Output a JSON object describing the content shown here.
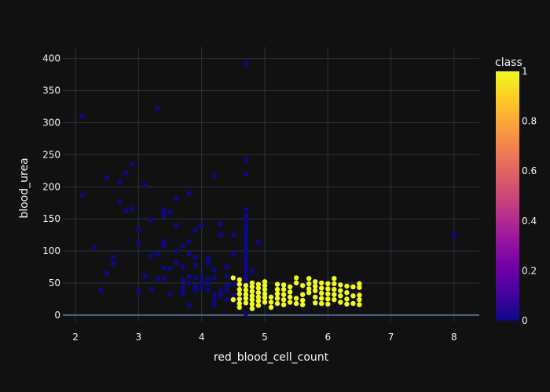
{
  "chart_data": {
    "type": "scatter",
    "title": "",
    "xlabel": "red_blood_cell_count",
    "ylabel": "blood_urea",
    "xlim": [
      1.8,
      8.4
    ],
    "ylim": [
      -10,
      418
    ],
    "xticks": [
      "2",
      "3",
      "4",
      "5",
      "6",
      "7",
      "8"
    ],
    "yticks": [
      "0",
      "50",
      "100",
      "150",
      "200",
      "250",
      "300",
      "350",
      "400"
    ],
    "grid": true,
    "colorbar": {
      "title": "class",
      "range": [
        0,
        1
      ],
      "ticks": [
        "0",
        "0.2",
        "0.4",
        "0.6",
        "0.8",
        "1"
      ],
      "colorscale": [
        "#0d0887",
        "#46039f",
        "#7201a8",
        "#9c179e",
        "#bd3786",
        "#d8576b",
        "#ed7953",
        "#fb9f3a",
        "#fdca26",
        "#f0f921"
      ]
    },
    "series": [
      {
        "class": 0,
        "color": "#0d0887",
        "points": [
          [
            2.1,
            310
          ],
          [
            2.1,
            187
          ],
          [
            2.3,
            106
          ],
          [
            2.4,
            39
          ],
          [
            2.5,
            215
          ],
          [
            2.5,
            66
          ],
          [
            2.6,
            90
          ],
          [
            2.6,
            80
          ],
          [
            2.7,
            208
          ],
          [
            2.7,
            176
          ],
          [
            2.8,
            222
          ],
          [
            2.8,
            162
          ],
          [
            2.9,
            235
          ],
          [
            2.9,
            166
          ],
          [
            3.0,
            133
          ],
          [
            3.0,
            112
          ],
          [
            3.0,
            37
          ],
          [
            3.1,
            203
          ],
          [
            3.1,
            60
          ],
          [
            3.2,
            148
          ],
          [
            3.2,
            92
          ],
          [
            3.2,
            40
          ],
          [
            3.3,
            322
          ],
          [
            3.3,
            96
          ],
          [
            3.3,
            57
          ],
          [
            3.4,
            164
          ],
          [
            3.4,
            155
          ],
          [
            3.4,
            115
          ],
          [
            3.4,
            108
          ],
          [
            3.4,
            73
          ],
          [
            3.4,
            57
          ],
          [
            3.5,
            160
          ],
          [
            3.5,
            72
          ],
          [
            3.5,
            33
          ],
          [
            3.6,
            182
          ],
          [
            3.6,
            140
          ],
          [
            3.6,
            100
          ],
          [
            3.6,
            82
          ],
          [
            3.7,
            108
          ],
          [
            3.7,
            75
          ],
          [
            3.7,
            55
          ],
          [
            3.7,
            45
          ],
          [
            3.7,
            38
          ],
          [
            3.7,
            32
          ],
          [
            3.8,
            190
          ],
          [
            3.8,
            115
          ],
          [
            3.8,
            96
          ],
          [
            3.8,
            60
          ],
          [
            3.8,
            50
          ],
          [
            3.8,
            16
          ],
          [
            3.9,
            133
          ],
          [
            3.9,
            90
          ],
          [
            3.9,
            78
          ],
          [
            3.9,
            58
          ],
          [
            3.9,
            45
          ],
          [
            3.9,
            38
          ],
          [
            4.0,
            140
          ],
          [
            4.0,
            60
          ],
          [
            4.0,
            50
          ],
          [
            4.0,
            42
          ],
          [
            4.1,
            88
          ],
          [
            4.1,
            80
          ],
          [
            4.1,
            56
          ],
          [
            4.1,
            48
          ],
          [
            4.1,
            39
          ],
          [
            4.2,
            217
          ],
          [
            4.2,
            70
          ],
          [
            4.2,
            58
          ],
          [
            4.2,
            32
          ],
          [
            4.2,
            24
          ],
          [
            4.2,
            16
          ],
          [
            4.3,
            142
          ],
          [
            4.3,
            125
          ],
          [
            4.3,
            37
          ],
          [
            4.3,
            30
          ],
          [
            4.4,
            75
          ],
          [
            4.4,
            60
          ],
          [
            4.4,
            46
          ],
          [
            4.4,
            38
          ],
          [
            4.4,
            25
          ],
          [
            4.5,
            125
          ],
          [
            4.5,
            95
          ],
          [
            4.5,
            48
          ],
          [
            4.5,
            30
          ],
          [
            4.6,
            55
          ],
          [
            4.6,
            40
          ],
          [
            4.6,
            22
          ],
          [
            4.7,
            392
          ],
          [
            4.7,
            242
          ],
          [
            4.7,
            220
          ],
          [
            4.7,
            165
          ],
          [
            4.7,
            155
          ],
          [
            4.7,
            148
          ],
          [
            4.7,
            140
          ],
          [
            4.7,
            132
          ],
          [
            4.7,
            125
          ],
          [
            4.7,
            117
          ],
          [
            4.7,
            110
          ],
          [
            4.7,
            103
          ],
          [
            4.7,
            96
          ],
          [
            4.7,
            89
          ],
          [
            4.7,
            82
          ],
          [
            4.7,
            75
          ],
          [
            4.7,
            68
          ],
          [
            4.7,
            61
          ],
          [
            4.7,
            54
          ],
          [
            4.7,
            2
          ],
          [
            4.8,
            68
          ],
          [
            4.8,
            47
          ],
          [
            4.9,
            113
          ],
          [
            5.0,
            38
          ],
          [
            8.0,
            125
          ]
        ]
      },
      {
        "class": 1,
        "color": "#f0f921",
        "points": [
          [
            4.5,
            58
          ],
          [
            4.5,
            24
          ],
          [
            4.6,
            55
          ],
          [
            4.6,
            48
          ],
          [
            4.6,
            40
          ],
          [
            4.6,
            33
          ],
          [
            4.6,
            25
          ],
          [
            4.6,
            18
          ],
          [
            4.6,
            12
          ],
          [
            4.7,
            46
          ],
          [
            4.7,
            39
          ],
          [
            4.7,
            32
          ],
          [
            4.7,
            26
          ],
          [
            4.7,
            19
          ],
          [
            4.8,
            50
          ],
          [
            4.8,
            44
          ],
          [
            4.8,
            37
          ],
          [
            4.8,
            30
          ],
          [
            4.8,
            24
          ],
          [
            4.8,
            17
          ],
          [
            4.8,
            10
          ],
          [
            4.9,
            48
          ],
          [
            4.9,
            42
          ],
          [
            4.9,
            35
          ],
          [
            4.9,
            28
          ],
          [
            4.9,
            22
          ],
          [
            4.9,
            15
          ],
          [
            5.0,
            52
          ],
          [
            5.0,
            46
          ],
          [
            5.0,
            40
          ],
          [
            5.0,
            33
          ],
          [
            5.0,
            27
          ],
          [
            5.0,
            20
          ],
          [
            5.1,
            28
          ],
          [
            5.1,
            20
          ],
          [
            5.1,
            12
          ],
          [
            5.2,
            48
          ],
          [
            5.2,
            40
          ],
          [
            5.2,
            33
          ],
          [
            5.2,
            26
          ],
          [
            5.2,
            18
          ],
          [
            5.3,
            47
          ],
          [
            5.3,
            40
          ],
          [
            5.3,
            32
          ],
          [
            5.3,
            24
          ],
          [
            5.3,
            16
          ],
          [
            5.4,
            44
          ],
          [
            5.4,
            36
          ],
          [
            5.4,
            28
          ],
          [
            5.4,
            20
          ],
          [
            5.5,
            58
          ],
          [
            5.5,
            50
          ],
          [
            5.5,
            26
          ],
          [
            5.5,
            18
          ],
          [
            5.6,
            46
          ],
          [
            5.6,
            32
          ],
          [
            5.6,
            23
          ],
          [
            5.6,
            16
          ],
          [
            5.7,
            57
          ],
          [
            5.7,
            49
          ],
          [
            5.7,
            41
          ],
          [
            5.7,
            35
          ],
          [
            5.8,
            52
          ],
          [
            5.8,
            45
          ],
          [
            5.8,
            38
          ],
          [
            5.8,
            28
          ],
          [
            5.8,
            19
          ],
          [
            5.9,
            50
          ],
          [
            5.9,
            42
          ],
          [
            5.9,
            34
          ],
          [
            5.9,
            26
          ],
          [
            5.9,
            18
          ],
          [
            6.0,
            49
          ],
          [
            6.0,
            41
          ],
          [
            6.0,
            33
          ],
          [
            6.0,
            25
          ],
          [
            6.0,
            17
          ],
          [
            6.1,
            57
          ],
          [
            6.1,
            49
          ],
          [
            6.1,
            40
          ],
          [
            6.1,
            32
          ],
          [
            6.1,
            24
          ],
          [
            6.2,
            47
          ],
          [
            6.2,
            38
          ],
          [
            6.2,
            30
          ],
          [
            6.2,
            20
          ],
          [
            6.3,
            45
          ],
          [
            6.3,
            35
          ],
          [
            6.3,
            25
          ],
          [
            6.3,
            17
          ],
          [
            6.4,
            44
          ],
          [
            6.4,
            30
          ],
          [
            6.4,
            18
          ],
          [
            6.5,
            49
          ],
          [
            6.5,
            43
          ],
          [
            6.5,
            31
          ],
          [
            6.5,
            24
          ],
          [
            6.5,
            16
          ]
        ]
      }
    ]
  }
}
